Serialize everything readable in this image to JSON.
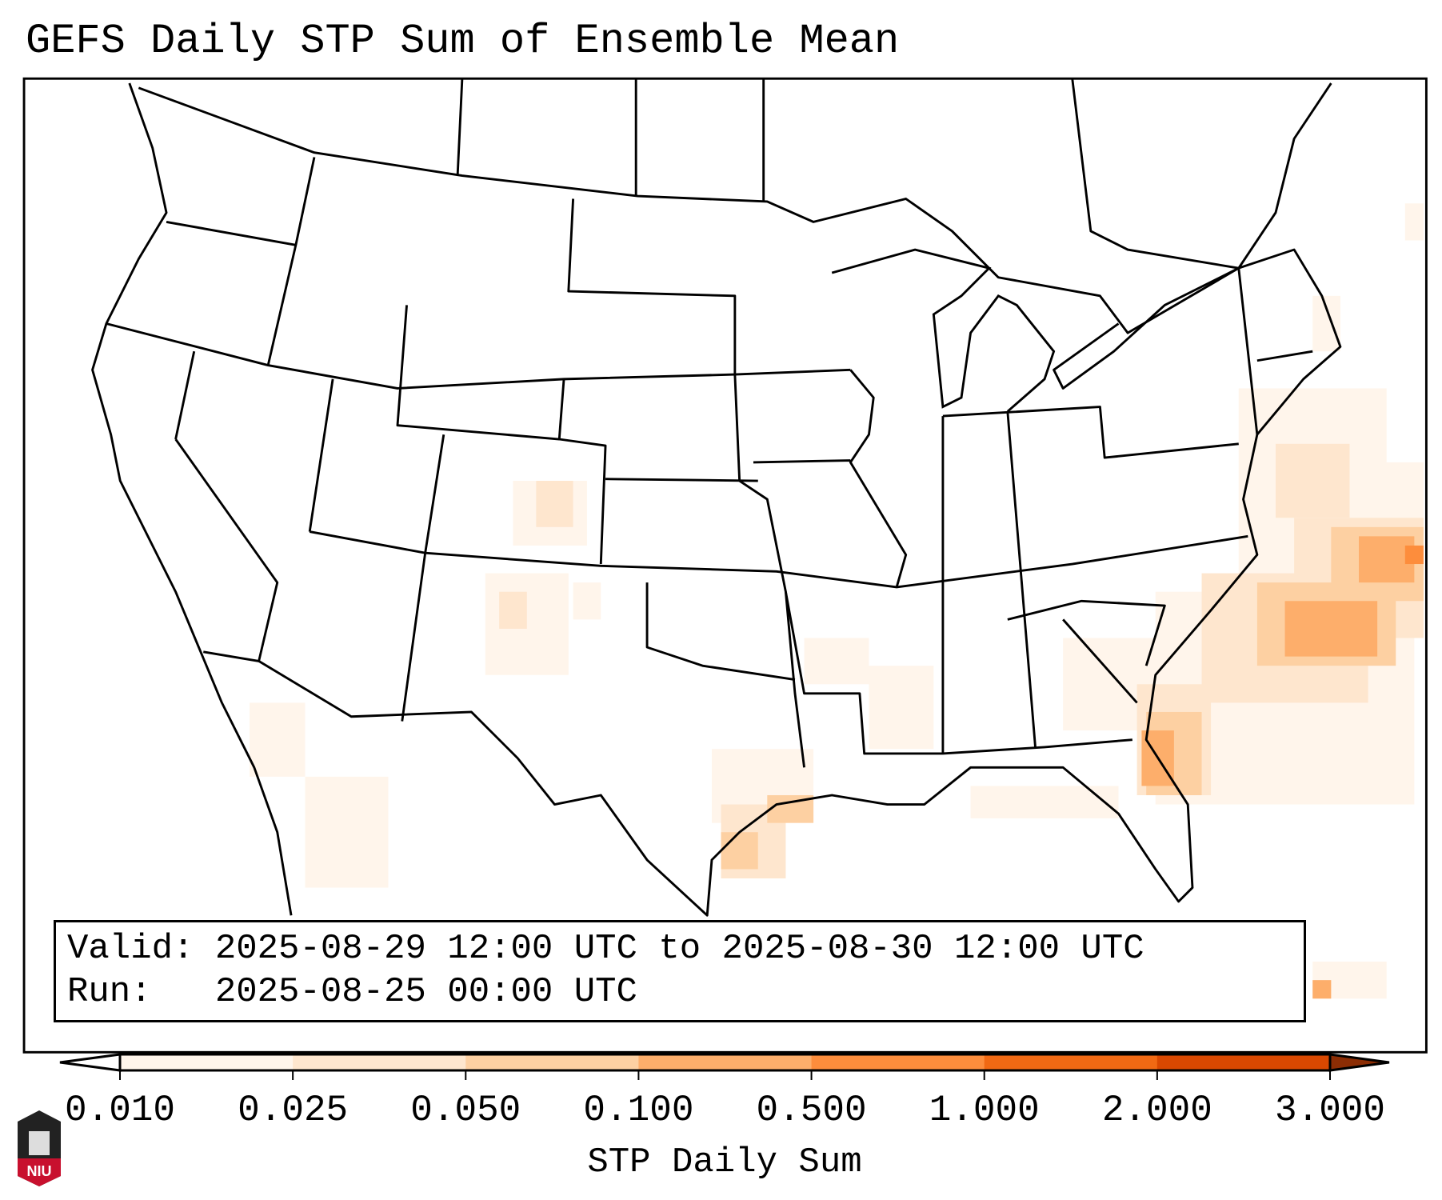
{
  "title": "GEFS Daily STP Sum of Ensemble Mean",
  "info": {
    "valid_label": "Valid:",
    "valid_value": "2025-08-29 12:00 UTC to 2025-08-30 12:00 UTC",
    "run_label": "Run:",
    "run_value": "2025-08-25 00:00 UTC"
  },
  "colorbar": {
    "label": "STP Daily Sum",
    "ticks": [
      "0.010",
      "0.025",
      "0.050",
      "0.100",
      "0.500",
      "1.000",
      "2.000",
      "3.000"
    ],
    "colors": [
      "#fff5eb",
      "#fee6ce",
      "#fdd0a2",
      "#fdae6b",
      "#fd8d3c",
      "#f16913",
      "#d94801"
    ],
    "under_color": "#ffffff",
    "over_color": "#8c2d04"
  },
  "logo": {
    "text": "NIU"
  }
}
